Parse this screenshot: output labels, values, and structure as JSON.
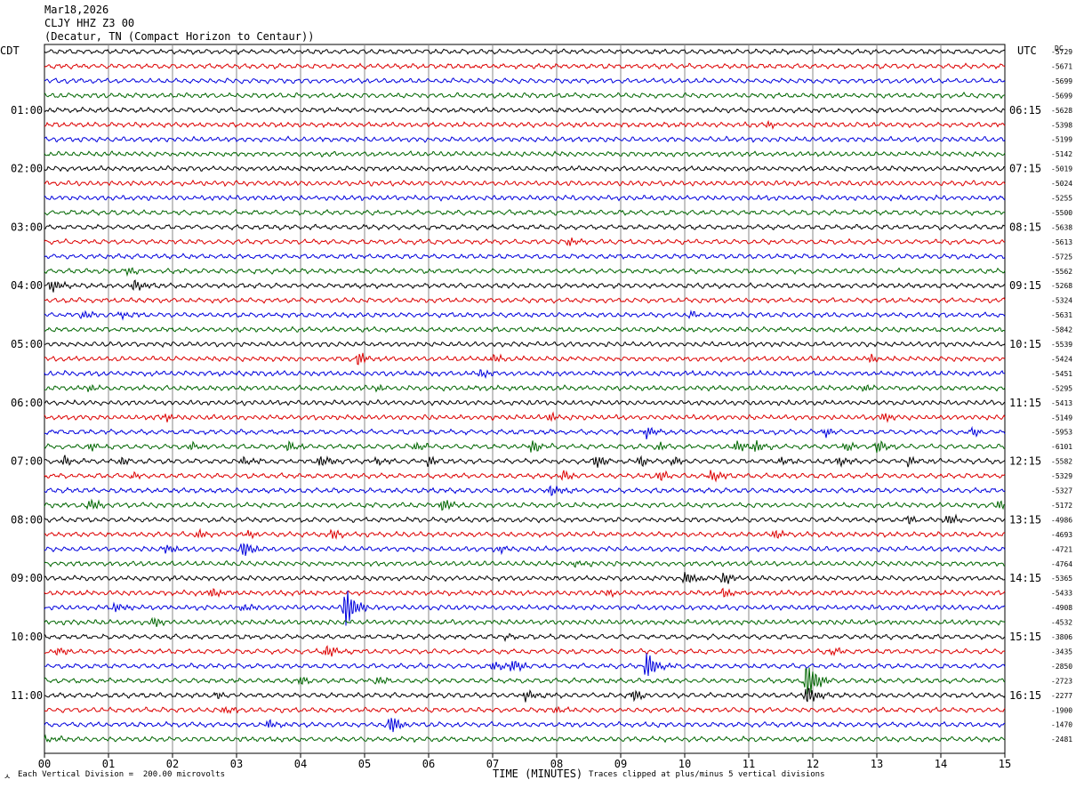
{
  "header": {
    "date": "Mar18,2026",
    "station": "CLJY HHZ Z3 00",
    "location": "(Decatur, TN (Compact Horizon to Centaur))"
  },
  "left_tz": "CDT",
  "right_tz": "UTC",
  "dc_header": "DC",
  "footer": {
    "scale": "Each Vertical Division =  200.00 microvolts",
    "clip": "Traces clipped at plus/minus 5 vertical divisions"
  },
  "colors": {
    "black": "#000000",
    "red": "#dd0000",
    "blue": "#0000dd",
    "green": "#006600",
    "grid": "#888888"
  },
  "chart_data": {
    "type": "line",
    "title": "CLJY HHZ Z3 00",
    "xlabel": "TIME (MINUTES)",
    "xlim": [
      0,
      15
    ],
    "x_ticks": [
      "00",
      "01",
      "02",
      "03",
      "04",
      "05",
      "06",
      "07",
      "08",
      "09",
      "10",
      "11",
      "12",
      "13",
      "14",
      "15"
    ],
    "trace_count": 48,
    "trace_interval_minutes": 15,
    "trace_colors_cycle": [
      "black",
      "red",
      "blue",
      "green"
    ],
    "left_hour_labels": [
      {
        "trace": 4,
        "label": "01:00"
      },
      {
        "trace": 8,
        "label": "02:00"
      },
      {
        "trace": 12,
        "label": "03:00"
      },
      {
        "trace": 16,
        "label": "04:00"
      },
      {
        "trace": 20,
        "label": "05:00"
      },
      {
        "trace": 24,
        "label": "06:00"
      },
      {
        "trace": 28,
        "label": "07:00"
      },
      {
        "trace": 32,
        "label": "08:00"
      },
      {
        "trace": 36,
        "label": "09:00"
      },
      {
        "trace": 40,
        "label": "10:00"
      },
      {
        "trace": 44,
        "label": "11:00"
      }
    ],
    "right_hour_labels": [
      {
        "trace": 4,
        "label": "06:15"
      },
      {
        "trace": 8,
        "label": "07:15"
      },
      {
        "trace": 12,
        "label": "08:15"
      },
      {
        "trace": 16,
        "label": "09:15"
      },
      {
        "trace": 20,
        "label": "10:15"
      },
      {
        "trace": 24,
        "label": "11:15"
      },
      {
        "trace": 28,
        "label": "12:15"
      },
      {
        "trace": 32,
        "label": "13:15"
      },
      {
        "trace": 36,
        "label": "14:15"
      },
      {
        "trace": 40,
        "label": "15:15"
      },
      {
        "trace": 44,
        "label": "16:15"
      }
    ],
    "dc_offsets": [
      "-5729",
      "-5671",
      "-5699",
      "-5699",
      "-5628",
      "-5398",
      "-5199",
      "-5142",
      "-5019",
      "-5024",
      "-5255",
      "-5500",
      "-5638",
      "-5613",
      "-5725",
      "-5562",
      "-5268",
      "-5324",
      "-5631",
      "-5842",
      "-5539",
      "-5424",
      "-5451",
      "-5295",
      "-5413",
      "-5149",
      "-5953",
      "-6101",
      "-5582",
      "-5329",
      "-5327",
      "-5172",
      "-4986",
      "-4693",
      "-4721",
      "-4764",
      "-5365",
      "-5433",
      "-4908",
      "-4532",
      "-3806",
      "-3435",
      "-2850",
      "-2723",
      "-2277",
      "-1900",
      "-1470",
      "-2481"
    ],
    "events": [
      {
        "trace": 5,
        "minute": 11.3,
        "amp": 0.6
      },
      {
        "trace": 13,
        "minute": 8.2,
        "amp": 0.6
      },
      {
        "trace": 15,
        "minute": 1.3,
        "amp": 0.5
      },
      {
        "trace": 16,
        "minute": 0.1,
        "amp": 0.9
      },
      {
        "trace": 16,
        "minute": 1.4,
        "amp": 0.8
      },
      {
        "trace": 18,
        "minute": 0.6,
        "amp": 0.5
      },
      {
        "trace": 18,
        "minute": 1.2,
        "amp": 0.6
      },
      {
        "trace": 18,
        "minute": 10.1,
        "amp": 0.5
      },
      {
        "trace": 21,
        "minute": 4.9,
        "amp": 1.0
      },
      {
        "trace": 21,
        "minute": 7.0,
        "amp": 0.6
      },
      {
        "trace": 21,
        "minute": 12.9,
        "amp": 0.6
      },
      {
        "trace": 22,
        "minute": 6.8,
        "amp": 0.5
      },
      {
        "trace": 23,
        "minute": 0.7,
        "amp": 0.7
      },
      {
        "trace": 23,
        "minute": 5.2,
        "amp": 0.6
      },
      {
        "trace": 23,
        "minute": 12.8,
        "amp": 0.7
      },
      {
        "trace": 25,
        "minute": 1.9,
        "amp": 0.6
      },
      {
        "trace": 25,
        "minute": 7.9,
        "amp": 0.7
      },
      {
        "trace": 25,
        "minute": 13.1,
        "amp": 0.6
      },
      {
        "trace": 26,
        "minute": 9.4,
        "amp": 1.1
      },
      {
        "trace": 26,
        "minute": 12.2,
        "amp": 0.7
      },
      {
        "trace": 26,
        "minute": 14.5,
        "amp": 0.7
      },
      {
        "trace": 27,
        "minute": 0.7,
        "amp": 0.6
      },
      {
        "trace": 27,
        "minute": 2.3,
        "amp": 0.6
      },
      {
        "trace": 27,
        "minute": 3.8,
        "amp": 0.8
      },
      {
        "trace": 27,
        "minute": 5.8,
        "amp": 0.6
      },
      {
        "trace": 27,
        "minute": 7.6,
        "amp": 1.0
      },
      {
        "trace": 27,
        "minute": 9.6,
        "amp": 0.6
      },
      {
        "trace": 27,
        "minute": 10.8,
        "amp": 1.0
      },
      {
        "trace": 27,
        "minute": 11.1,
        "amp": 0.8
      },
      {
        "trace": 27,
        "minute": 12.5,
        "amp": 0.7
      },
      {
        "trace": 27,
        "minute": 13.0,
        "amp": 1.0
      },
      {
        "trace": 28,
        "minute": 0.3,
        "amp": 0.7
      },
      {
        "trace": 28,
        "minute": 1.2,
        "amp": 0.6
      },
      {
        "trace": 28,
        "minute": 3.1,
        "amp": 0.7
      },
      {
        "trace": 28,
        "minute": 4.3,
        "amp": 1.0
      },
      {
        "trace": 28,
        "minute": 5.2,
        "amp": 0.6
      },
      {
        "trace": 28,
        "minute": 6.0,
        "amp": 0.7
      },
      {
        "trace": 28,
        "minute": 8.6,
        "amp": 1.0
      },
      {
        "trace": 28,
        "minute": 9.3,
        "amp": 0.8
      },
      {
        "trace": 28,
        "minute": 9.8,
        "amp": 0.6
      },
      {
        "trace": 28,
        "minute": 11.5,
        "amp": 0.6
      },
      {
        "trace": 28,
        "minute": 12.4,
        "amp": 0.8
      },
      {
        "trace": 28,
        "minute": 13.5,
        "amp": 0.7
      },
      {
        "trace": 29,
        "minute": 1.4,
        "amp": 0.6
      },
      {
        "trace": 29,
        "minute": 8.1,
        "amp": 0.7
      },
      {
        "trace": 29,
        "minute": 9.6,
        "amp": 0.7
      },
      {
        "trace": 29,
        "minute": 10.4,
        "amp": 0.9
      },
      {
        "trace": 30,
        "minute": 7.9,
        "amp": 0.8
      },
      {
        "trace": 31,
        "minute": 0.7,
        "amp": 0.9
      },
      {
        "trace": 31,
        "minute": 6.2,
        "amp": 1.0
      },
      {
        "trace": 31,
        "minute": 14.9,
        "amp": 0.7
      },
      {
        "trace": 32,
        "minute": 13.5,
        "amp": 0.6
      },
      {
        "trace": 32,
        "minute": 14.1,
        "amp": 0.8
      },
      {
        "trace": 33,
        "minute": 2.4,
        "amp": 0.6
      },
      {
        "trace": 33,
        "minute": 3.2,
        "amp": 0.6
      },
      {
        "trace": 33,
        "minute": 4.5,
        "amp": 0.7
      },
      {
        "trace": 33,
        "minute": 11.4,
        "amp": 0.6
      },
      {
        "trace": 34,
        "minute": 1.9,
        "amp": 0.8
      },
      {
        "trace": 34,
        "minute": 3.1,
        "amp": 1.3
      },
      {
        "trace": 34,
        "minute": 7.1,
        "amp": 0.5
      },
      {
        "trace": 35,
        "minute": 8.3,
        "amp": 0.5
      },
      {
        "trace": 36,
        "minute": 10.0,
        "amp": 1.0
      },
      {
        "trace": 36,
        "minute": 10.6,
        "amp": 0.8
      },
      {
        "trace": 37,
        "minute": 2.6,
        "amp": 0.6
      },
      {
        "trace": 37,
        "minute": 8.8,
        "amp": 0.5
      },
      {
        "trace": 37,
        "minute": 10.6,
        "amp": 0.8
      },
      {
        "trace": 38,
        "minute": 1.1,
        "amp": 0.7
      },
      {
        "trace": 38,
        "minute": 3.1,
        "amp": 0.6
      },
      {
        "trace": 38,
        "minute": 4.7,
        "amp": 3.2
      },
      {
        "trace": 39,
        "minute": 1.7,
        "amp": 0.6
      },
      {
        "trace": 40,
        "minute": 7.2,
        "amp": 0.5
      },
      {
        "trace": 41,
        "minute": 0.2,
        "amp": 0.6
      },
      {
        "trace": 41,
        "minute": 4.4,
        "amp": 1.0
      },
      {
        "trace": 41,
        "minute": 12.3,
        "amp": 0.6
      },
      {
        "trace": 42,
        "minute": 7.0,
        "amp": 0.8
      },
      {
        "trace": 42,
        "minute": 7.3,
        "amp": 1.0
      },
      {
        "trace": 42,
        "minute": 9.4,
        "amp": 2.2
      },
      {
        "trace": 43,
        "minute": 4.0,
        "amp": 0.7
      },
      {
        "trace": 43,
        "minute": 5.2,
        "amp": 0.6
      },
      {
        "trace": 43,
        "minute": 11.9,
        "amp": 3.0
      },
      {
        "trace": 44,
        "minute": 2.7,
        "amp": 0.6
      },
      {
        "trace": 44,
        "minute": 7.5,
        "amp": 0.9
      },
      {
        "trace": 44,
        "minute": 9.2,
        "amp": 0.9
      },
      {
        "trace": 44,
        "minute": 11.9,
        "amp": 1.6
      },
      {
        "trace": 45,
        "minute": 2.8,
        "amp": 0.6
      },
      {
        "trace": 45,
        "minute": 8.0,
        "amp": 0.5
      },
      {
        "trace": 46,
        "minute": 3.5,
        "amp": 0.7
      },
      {
        "trace": 46,
        "minute": 5.4,
        "amp": 1.4
      },
      {
        "trace": 47,
        "minute": 0.0,
        "amp": 0.5
      }
    ]
  }
}
